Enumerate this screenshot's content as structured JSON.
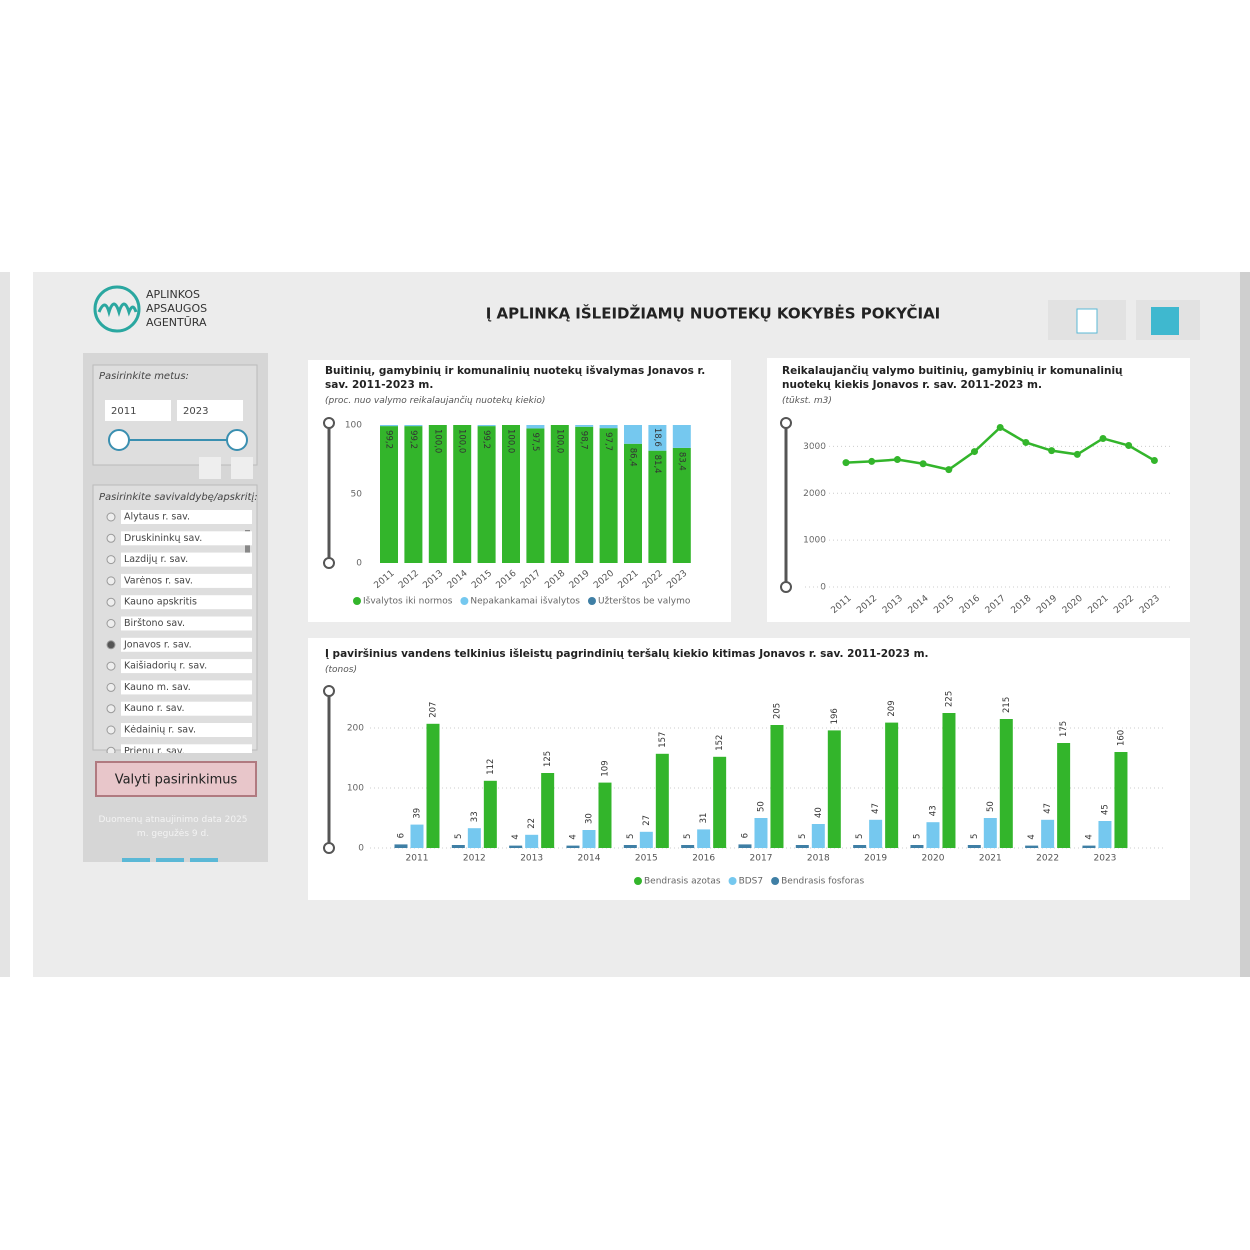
{
  "header": {
    "logo": [
      "APLINKOS",
      "APSAUGOS",
      "AGENTŪRA"
    ],
    "title": "Į APLINKĄ IŠLEIDŽIAMŲ NUOTEKŲ KOKYBĖS POKYČIAI"
  },
  "filters": {
    "year_label": "Pasirinkite metus:",
    "year_from": "2011",
    "year_to": "2023",
    "area_label": "Pasirinkite savivaldybę/apskritį:",
    "areas": [
      {
        "label": "Alytaus r. sav.",
        "selected": false
      },
      {
        "label": "Druskininkų sav.",
        "selected": false
      },
      {
        "label": "Lazdijų r. sav.",
        "selected": false
      },
      {
        "label": "Varėnos r. sav.",
        "selected": false
      },
      {
        "label": "Kauno apskritis",
        "selected": false
      },
      {
        "label": "Birštono sav.",
        "selected": false
      },
      {
        "label": "Jonavos r. sav.",
        "selected": true
      },
      {
        "label": "Kaišiadorių r. sav.",
        "selected": false
      },
      {
        "label": "Kauno m. sav.",
        "selected": false
      },
      {
        "label": "Kauno r. sav.",
        "selected": false
      },
      {
        "label": "Kėdainių r. sav.",
        "selected": false
      },
      {
        "label": "Prienų r. sav.",
        "selected": false
      }
    ],
    "clear_button": "Valyti pasirinkimus",
    "footer": "Duomenų atnaujinimo data 2025 m. gegužės 9 d."
  },
  "chart_data": [
    {
      "type": "bar",
      "stacked": true,
      "grid": false,
      "title": "Buitinių, gamybinių ir komunalinių nuotekų išvalymas Jonavos r. sav. 2011-2023 m.",
      "subtitle": "(proc. nuo valymo reikalaujančių nuotekų kiekio)",
      "categories": [
        "2011",
        "2012",
        "2013",
        "2014",
        "2015",
        "2016",
        "2017",
        "2018",
        "2019",
        "2020",
        "2021",
        "2022",
        "2023"
      ],
      "ylim": [
        0,
        100
      ],
      "yticks": [
        0,
        50,
        100
      ],
      "series": [
        {
          "name": "Išvalytos iki normos",
          "color": "#33b52b",
          "values": [
            99.2,
            99.2,
            100.0,
            100.0,
            99.2,
            100.0,
            97.5,
            100.0,
            98.7,
            97.7,
            86.4,
            81.4,
            83.4
          ],
          "value_labels": [
            "99,2",
            "99,2",
            "100,0",
            "100,0",
            "99,2",
            "100,0",
            "97,5",
            "100,0",
            "98,7",
            "97,7",
            "86,4",
            "81,4",
            "83,4"
          ]
        },
        {
          "name": "Nepakankamai išvalytos",
          "color": "#75c8ef",
          "values": [
            0.8,
            0.8,
            0,
            0,
            0.8,
            0,
            2.5,
            0,
            1.3,
            2.3,
            13.6,
            18.6,
            16.6
          ],
          "value_labels": [
            null,
            null,
            null,
            null,
            null,
            null,
            null,
            null,
            null,
            null,
            null,
            "18,6",
            null
          ]
        },
        {
          "name": "Užterštos be valymo",
          "color": "#3f7fa5",
          "values": [
            0,
            0,
            0,
            0,
            0,
            0,
            0,
            0,
            0,
            0,
            0,
            0,
            0
          ]
        }
      ]
    },
    {
      "type": "line",
      "grid": true,
      "title": "Reikalaujančių valymo buitinių, gamybinių ir komunalinių nuotekų kiekis Jonavos r. sav. 2011-2023 m.",
      "subtitle": "(tūkst. m3)",
      "categories": [
        "2011",
        "2012",
        "2013",
        "2014",
        "2015",
        "2016",
        "2017",
        "2018",
        "2019",
        "2020",
        "2021",
        "2022",
        "2023"
      ],
      "ylim": [
        0,
        3500
      ],
      "yticks": [
        0,
        1000,
        2000,
        3000
      ],
      "series": [
        {
          "name": "Kiekis",
          "color": "#33b52b",
          "values": [
            2655,
            2680,
            2720,
            2630,
            2505,
            2890,
            3405,
            3085,
            2910,
            2830,
            3170,
            3020,
            2700
          ]
        }
      ]
    },
    {
      "type": "bar",
      "stacked": false,
      "grid": true,
      "title": "Į paviršinius vandens telkinius išleistų pagrindinių teršalų kiekio kitimas Jonavos r. sav. 2011-2023 m.",
      "subtitle": "(tonos)",
      "categories": [
        "2011",
        "2012",
        "2013",
        "2014",
        "2015",
        "2016",
        "2017",
        "2018",
        "2019",
        "2020",
        "2021",
        "2022",
        "2023"
      ],
      "ylim": [
        0,
        260
      ],
      "yticks": [
        0,
        100,
        200
      ],
      "series": [
        {
          "name": "Bendrasis azotas",
          "color": "#33b52b",
          "values": [
            207,
            112,
            125,
            109,
            157,
            152,
            205,
            196,
            209,
            225,
            215,
            175,
            160
          ]
        },
        {
          "name": "BDS7",
          "color": "#75c8ef",
          "values": [
            39,
            33,
            22,
            30,
            27,
            31,
            50,
            40,
            47,
            43,
            50,
            47,
            45
          ]
        },
        {
          "name": "Bendrasis fosforas",
          "color": "#3f7fa5",
          "values": [
            6,
            5,
            4,
            4,
            5,
            5,
            6,
            5,
            5,
            5,
            5,
            4,
            4
          ]
        }
      ]
    }
  ]
}
